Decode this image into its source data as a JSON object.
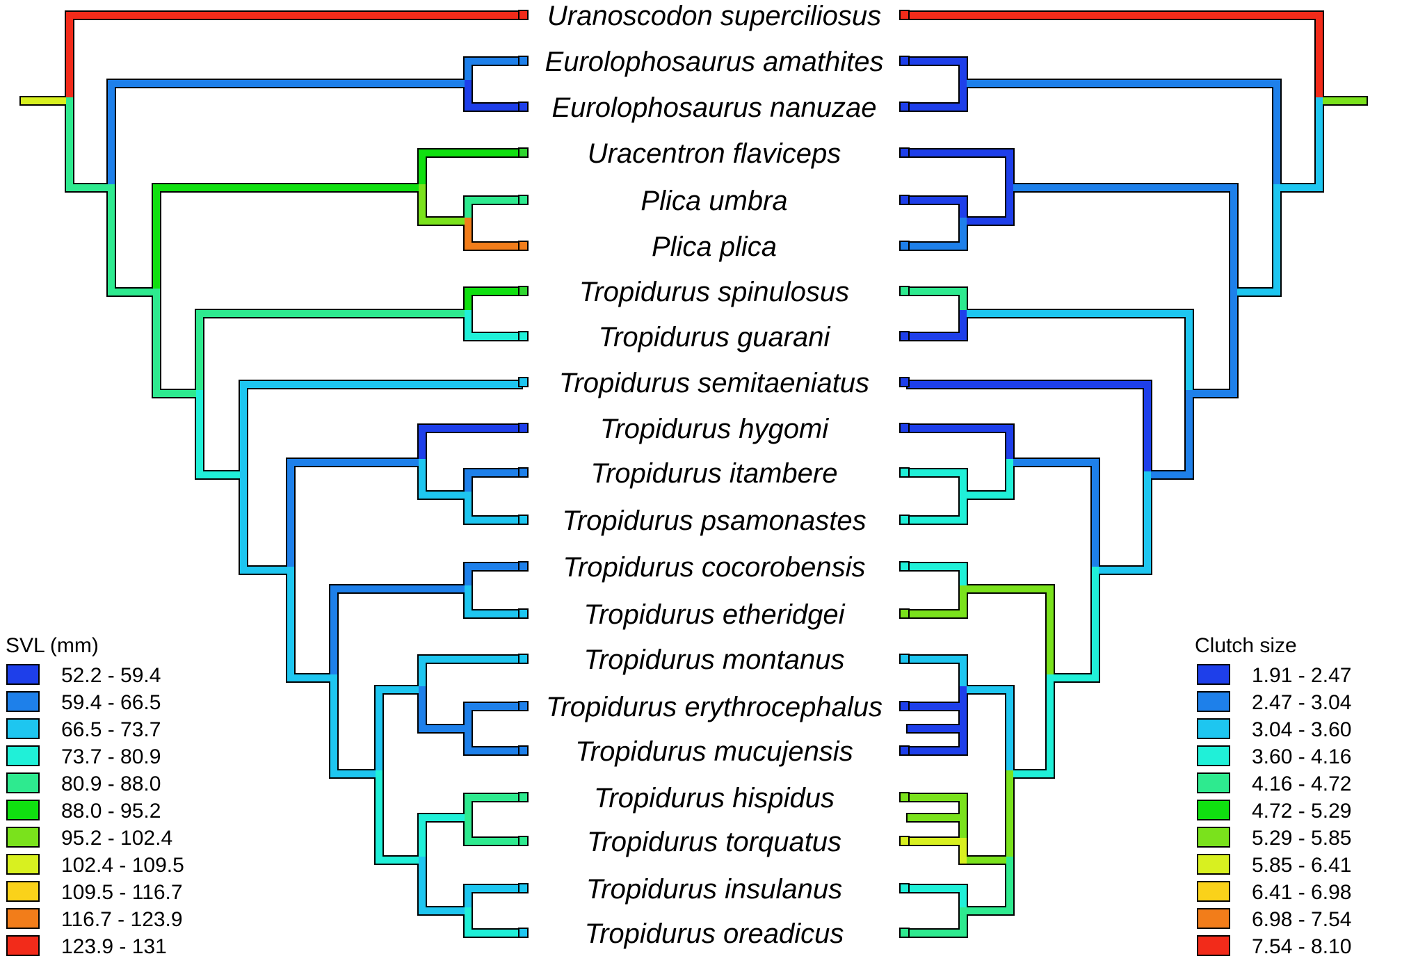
{
  "taxa": [
    {
      "name": "Uranoscodon superciliosus",
      "svl": "#f22b1a",
      "clutch": "#f22b1a"
    },
    {
      "name": "Eurolophosaurus amathites",
      "svl": "#1e80ea",
      "clutch": "#1e3fea"
    },
    {
      "name": "Eurolophosaurus nanuzae",
      "svl": "#1e3fea",
      "clutch": "#1e3fea"
    },
    {
      "name": "Uracentron flaviceps",
      "svl": "#30d630",
      "clutch": "#1e3fea"
    },
    {
      "name": "Plica umbra",
      "svl": "#2eea8f",
      "clutch": "#1e3fea"
    },
    {
      "name": "Plica plica",
      "svl": "#f27d1a",
      "clutch": "#1e80ea"
    },
    {
      "name": "Tropidurus spinulosus",
      "svl": "#30d630",
      "clutch": "#2eea8f"
    },
    {
      "name": "Tropidurus guarani",
      "svl": "#20f0d8",
      "clutch": "#1e3fea"
    },
    {
      "name": "Tropidurus semitaeniatus",
      "svl": "#1ec6f0",
      "clutch": "#1e3fea"
    },
    {
      "name": "Tropidurus hygomi",
      "svl": "#1e3fea",
      "clutch": "#1e3fea"
    },
    {
      "name": "Tropidurus itambere",
      "svl": "#1e80ea",
      "clutch": "#20f0d8"
    },
    {
      "name": "Tropidurus psamonastes",
      "svl": "#1ec6f0",
      "clutch": "#20f0d8"
    },
    {
      "name": "Tropidurus cocorobensis",
      "svl": "#1e80ea",
      "clutch": "#20f0d8"
    },
    {
      "name": "Tropidurus etheridgei",
      "svl": "#1ec6f0",
      "clutch": "#7ae21c"
    },
    {
      "name": "Tropidurus montanus",
      "svl": "#1ec6f0",
      "clutch": "#1ec6f0"
    },
    {
      "name": "Tropidurus erythrocephalus",
      "svl": "#1e80ea",
      "clutch": "#1e3fea"
    },
    {
      "name": "Tropidurus mucujensis",
      "svl": "#1e80ea",
      "clutch": "#1e3fea"
    },
    {
      "name": "Tropidurus hispidus",
      "svl": "#2eea8f",
      "clutch": "#7ae21c"
    },
    {
      "name": "Tropidurus torquatus",
      "svl": "#2eea8f",
      "clutch": "#d8f020"
    },
    {
      "name": "Tropidurus insulanus",
      "svl": "#1ec6f0",
      "clutch": "#20f0d8"
    },
    {
      "name": "Tropidurus oreadicus",
      "svl": "#1ec6f0",
      "clutch": "#2eea8f"
    }
  ],
  "svl_legend": {
    "title": "SVL (mm)",
    "items": [
      {
        "label": "52.2 - 59.4",
        "color": "#1e3fea"
      },
      {
        "label": "59.4 - 66.5",
        "color": "#1e80ea"
      },
      {
        "label": "66.5 - 73.7",
        "color": "#1ec6f0"
      },
      {
        "label": "73.7 - 80.9",
        "color": "#20f0d8"
      },
      {
        "label": "80.9 - 88.0",
        "color": "#2eea8f"
      },
      {
        "label": "88.0 - 95.2",
        "color": "#10e010"
      },
      {
        "label": "95.2 - 102.4",
        "color": "#7ae21c"
      },
      {
        "label": "102.4 - 109.5",
        "color": "#d8f020"
      },
      {
        "label": "109.5 - 116.7",
        "color": "#fad21a"
      },
      {
        "label": "116.7 - 123.9",
        "color": "#f27d1a"
      },
      {
        "label": "123.9 - 131",
        "color": "#f22b1a"
      }
    ]
  },
  "clutch_legend": {
    "title": "Clutch size",
    "items": [
      {
        "label": "1.91 - 2.47",
        "color": "#1e3fea"
      },
      {
        "label": "2.47 - 3.04",
        "color": "#1e80ea"
      },
      {
        "label": "3.04 - 3.60",
        "color": "#1ec6f0"
      },
      {
        "label": "3.60 - 4.16",
        "color": "#20f0d8"
      },
      {
        "label": "4.16 - 4.72",
        "color": "#2eea8f"
      },
      {
        "label": "4.72 - 5.29",
        "color": "#10e010"
      },
      {
        "label": "5.29 - 5.85",
        "color": "#7ae21c"
      },
      {
        "label": "5.85 - 6.41",
        "color": "#d8f020"
      },
      {
        "label": "6.41 - 6.98",
        "color": "#fad21a"
      },
      {
        "label": "6.98 - 7.54",
        "color": "#f27d1a"
      },
      {
        "label": "7.54 - 8.10",
        "color": "#f22b1a"
      }
    ]
  },
  "branch_colors": {
    "root": "#d8f020",
    "root_right": "#7ae21c",
    "red": "#f22b1a",
    "blue": "#1e3fea",
    "mblue": "#1e80ea",
    "cyan": "#1ec6f0",
    "turq": "#20f0d8",
    "mint": "#2eea8f",
    "green": "#10e010",
    "lgreen": "#7ae21c",
    "yellow": "#d8f020",
    "orange": "#f27d1a"
  }
}
